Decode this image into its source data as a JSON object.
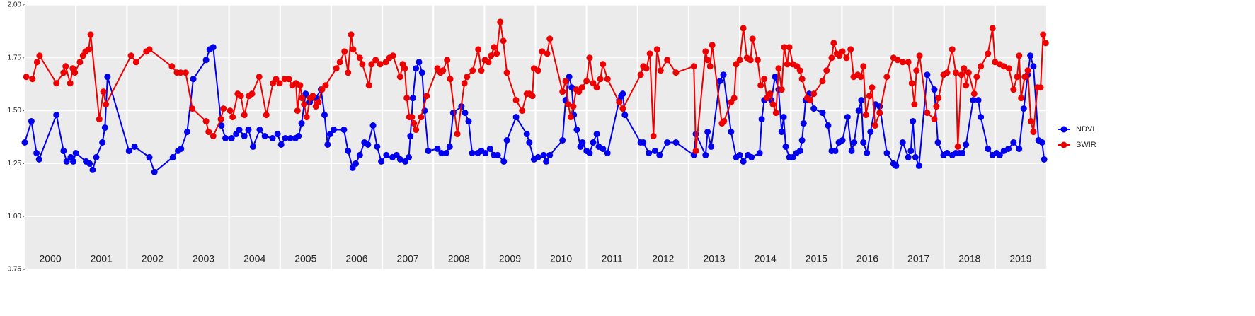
{
  "chart_data": {
    "type": "line",
    "xlim": [
      2000,
      2020
    ],
    "xticks": [
      {
        "value": 2000,
        "label": "2000"
      },
      {
        "value": 2001,
        "label": "2001"
      },
      {
        "value": 2002,
        "label": "2002"
      },
      {
        "value": 2003,
        "label": "2003"
      },
      {
        "value": 2004,
        "label": "2004"
      },
      {
        "value": 2005,
        "label": "2005"
      },
      {
        "value": 2006,
        "label": "2006"
      },
      {
        "value": 2007,
        "label": "2007"
      },
      {
        "value": 2008,
        "label": "2008"
      },
      {
        "value": 2009,
        "label": "2009"
      },
      {
        "value": 2010,
        "label": "2010"
      },
      {
        "value": 2011,
        "label": "2011"
      },
      {
        "value": 2012,
        "label": "2012"
      },
      {
        "value": 2013,
        "label": "2013"
      },
      {
        "value": 2014,
        "label": "2014"
      },
      {
        "value": 2015,
        "label": "2015"
      },
      {
        "value": 2016,
        "label": "2016"
      },
      {
        "value": 2017,
        "label": "2017"
      },
      {
        "value": 2018,
        "label": "2018"
      },
      {
        "value": 2019,
        "label": "2019"
      }
    ],
    "ylim": [
      0.75,
      2.0
    ],
    "yticks": [
      {
        "value": 0.75,
        "label": "0.75"
      },
      {
        "value": 1.0,
        "label": "1.00"
      },
      {
        "value": 1.25,
        "label": "1.25"
      },
      {
        "value": 1.5,
        "label": "1.50"
      },
      {
        "value": 1.75,
        "label": "1.75"
      },
      {
        "value": 2.0,
        "label": "2.00"
      }
    ],
    "grid": true,
    "legend": "right",
    "series": [
      {
        "name": "NDVI",
        "color": "#0000ee",
        "x": [
          2000.0,
          2000.13,
          2000.23,
          2000.28,
          2000.62,
          2000.76,
          2000.82,
          2000.9,
          2000.95,
          2001.0,
          2001.2,
          2001.27,
          2001.33,
          2001.4,
          2001.52,
          2001.57,
          2001.62,
          2002.04,
          2002.15,
          2002.44,
          2002.54,
          2002.9,
          2003.0,
          2003.06,
          2003.18,
          2003.3,
          2003.55,
          2003.62,
          2003.69,
          2003.85,
          2003.93,
          2004.05,
          2004.14,
          2004.2,
          2004.3,
          2004.38,
          2004.47,
          2004.6,
          2004.7,
          2004.85,
          2004.95,
          2005.02,
          2005.1,
          2005.2,
          2005.3,
          2005.36,
          2005.42,
          2005.5,
          2005.58,
          2005.7,
          2005.8,
          2005.87,
          2005.93,
          2005.98,
          2006.05,
          2006.25,
          2006.33,
          2006.42,
          2006.48,
          2006.56,
          2006.65,
          2006.72,
          2006.82,
          2006.9,
          2006.98,
          2007.08,
          2007.2,
          2007.28,
          2007.35,
          2007.45,
          2007.52,
          2007.55,
          2007.6,
          2007.66,
          2007.72,
          2007.78,
          2007.83,
          2007.9,
          2008.08,
          2008.16,
          2008.25,
          2008.32,
          2008.39,
          2008.55,
          2008.62,
          2008.69,
          2008.76,
          2008.87,
          2008.94,
          2009.02,
          2009.11,
          2009.19,
          2009.26,
          2009.38,
          2009.44,
          2009.62,
          2009.83,
          2009.88,
          2009.97,
          2010.05,
          2010.16,
          2010.21,
          2010.28,
          2010.53,
          2010.59,
          2010.66,
          2010.71,
          2010.75,
          2010.81,
          2010.88,
          2010.92,
          2011.0,
          2011.06,
          2011.13,
          2011.2,
          2011.24,
          2011.32,
          2011.41,
          2011.64,
          2011.68,
          2011.71,
          2011.75,
          2012.06,
          2012.11,
          2012.22,
          2012.34,
          2012.43,
          2012.58,
          2012.75,
          2013.1,
          2013.14,
          2013.33,
          2013.37,
          2013.44,
          2013.61,
          2013.68,
          2013.83,
          2013.93,
          2014.0,
          2014.07,
          2014.16,
          2014.23,
          2014.39,
          2014.43,
          2014.48,
          2014.62,
          2014.69,
          2014.76,
          2014.82,
          2014.86,
          2014.9,
          2014.97,
          2015.04,
          2015.11,
          2015.18,
          2015.22,
          2015.25,
          2015.29,
          2015.36,
          2015.45,
          2015.62,
          2015.73,
          2015.8,
          2015.87,
          2015.94,
          2016.01,
          2016.11,
          2016.19,
          2016.24,
          2016.33,
          2016.38,
          2016.42,
          2016.49,
          2016.56,
          2016.66,
          2016.74,
          2016.88,
          2017.01,
          2017.06,
          2017.19,
          2017.3,
          2017.35,
          2017.39,
          2017.44,
          2017.51,
          2017.67,
          2017.81,
          2017.88,
          2017.99,
          2018.06,
          2018.16,
          2018.23,
          2018.3,
          2018.36,
          2018.43,
          2018.57,
          2018.67,
          2018.72,
          2018.86,
          2018.95,
          2019.03,
          2019.09,
          2019.17,
          2019.26,
          2019.36,
          2019.47,
          2019.56,
          2019.64,
          2019.69,
          2019.75,
          2019.85,
          2019.92,
          2019.96
        ],
        "values": [
          1.35,
          1.45,
          1.3,
          1.27,
          1.48,
          1.31,
          1.26,
          1.28,
          1.26,
          1.3,
          1.26,
          1.25,
          1.22,
          1.28,
          1.35,
          1.42,
          1.66,
          1.31,
          1.33,
          1.28,
          1.21,
          1.28,
          1.31,
          1.32,
          1.4,
          1.65,
          1.74,
          1.79,
          1.8,
          1.43,
          1.37,
          1.37,
          1.39,
          1.41,
          1.38,
          1.41,
          1.33,
          1.41,
          1.38,
          1.37,
          1.39,
          1.34,
          1.37,
          1.37,
          1.37,
          1.38,
          1.44,
          1.58,
          1.54,
          1.56,
          1.6,
          1.48,
          1.34,
          1.39,
          1.41,
          1.41,
          1.31,
          1.23,
          1.25,
          1.29,
          1.35,
          1.34,
          1.43,
          1.33,
          1.26,
          1.29,
          1.28,
          1.29,
          1.27,
          1.26,
          1.28,
          1.38,
          1.56,
          1.7,
          1.73,
          1.68,
          1.5,
          1.31,
          1.32,
          1.3,
          1.3,
          1.33,
          1.49,
          1.52,
          1.49,
          1.45,
          1.3,
          1.3,
          1.31,
          1.3,
          1.32,
          1.29,
          1.29,
          1.26,
          1.36,
          1.47,
          1.39,
          1.35,
          1.27,
          1.28,
          1.29,
          1.26,
          1.29,
          1.36,
          1.55,
          1.66,
          1.61,
          1.48,
          1.41,
          1.33,
          1.35,
          1.31,
          1.3,
          1.35,
          1.39,
          1.33,
          1.32,
          1.3,
          1.55,
          1.57,
          1.58,
          1.48,
          1.35,
          1.35,
          1.3,
          1.31,
          1.29,
          1.35,
          1.35,
          1.29,
          1.39,
          1.29,
          1.4,
          1.33,
          1.64,
          1.67,
          1.4,
          1.28,
          1.29,
          1.26,
          1.29,
          1.28,
          1.3,
          1.46,
          1.55,
          1.55,
          1.66,
          1.6,
          1.4,
          1.47,
          1.33,
          1.28,
          1.28,
          1.3,
          1.31,
          1.36,
          1.44,
          1.55,
          1.58,
          1.51,
          1.49,
          1.43,
          1.31,
          1.31,
          1.35,
          1.36,
          1.47,
          1.31,
          1.35,
          1.5,
          1.55,
          1.35,
          1.3,
          1.4,
          1.53,
          1.52,
          1.3,
          1.25,
          1.24,
          1.35,
          1.28,
          1.31,
          1.45,
          1.28,
          1.24,
          1.67,
          1.6,
          1.35,
          1.29,
          1.3,
          1.29,
          1.3,
          1.3,
          1.3,
          1.34,
          1.55,
          1.55,
          1.47,
          1.32,
          1.29,
          1.3,
          1.29,
          1.31,
          1.32,
          1.35,
          1.32,
          1.51,
          1.67,
          1.76,
          1.71,
          1.36,
          1.35,
          1.27
        ]
      },
      {
        "name": "SWIR",
        "color": "#ee0000",
        "x": [
          2000.03,
          2000.15,
          2000.24,
          2000.29,
          2000.62,
          2000.76,
          2000.8,
          2000.89,
          2000.94,
          2000.98,
          2001.08,
          2001.14,
          2001.19,
          2001.25,
          2001.29,
          2001.46,
          2001.54,
          2001.59,
          2002.08,
          2002.18,
          2002.38,
          2002.44,
          2002.88,
          2002.98,
          2003.05,
          2003.15,
          2003.28,
          2003.55,
          2003.6,
          2003.69,
          2003.84,
          2003.89,
          2004.02,
          2004.07,
          2004.17,
          2004.23,
          2004.3,
          2004.39,
          2004.45,
          2004.59,
          2004.73,
          2004.86,
          2004.92,
          2004.99,
          2005.09,
          2005.17,
          2005.24,
          2005.31,
          2005.34,
          2005.39,
          2005.43,
          2005.47,
          2005.52,
          2005.59,
          2005.64,
          2005.7,
          2005.75,
          2005.82,
          2005.89,
          2006.1,
          2006.17,
          2006.26,
          2006.33,
          2006.39,
          2006.43,
          2006.56,
          2006.61,
          2006.74,
          2006.79,
          2006.87,
          2006.96,
          2007.07,
          2007.14,
          2007.21,
          2007.35,
          2007.4,
          2007.44,
          2007.48,
          2007.53,
          2007.58,
          2007.62,
          2007.66,
          2007.76,
          2007.87,
          2008.08,
          2008.14,
          2008.19,
          2008.27,
          2008.33,
          2008.47,
          2008.61,
          2008.66,
          2008.77,
          2008.88,
          2008.94,
          2009.01,
          2009.08,
          2009.13,
          2009.19,
          2009.24,
          2009.31,
          2009.37,
          2009.44,
          2009.62,
          2009.74,
          2009.83,
          2009.88,
          2009.94,
          2009.97,
          2010.05,
          2010.13,
          2010.23,
          2010.28,
          2010.53,
          2010.59,
          2010.64,
          2010.69,
          2010.74,
          2010.8,
          2010.85,
          2010.91,
          2011.0,
          2011.06,
          2011.13,
          2011.2,
          2011.27,
          2011.32,
          2011.41,
          2011.64,
          2011.71,
          2012.06,
          2012.11,
          2012.17,
          2012.24,
          2012.31,
          2012.38,
          2012.45,
          2012.58,
          2012.75,
          2013.1,
          2013.14,
          2013.33,
          2013.37,
          2013.42,
          2013.46,
          2013.65,
          2013.69,
          2013.83,
          2013.89,
          2013.93,
          2014.0,
          2014.07,
          2014.14,
          2014.21,
          2014.25,
          2014.35,
          2014.41,
          2014.48,
          2014.53,
          2014.59,
          2014.65,
          2014.71,
          2014.76,
          2014.82,
          2014.87,
          2014.93,
          2014.97,
          2015.04,
          2015.12,
          2015.18,
          2015.22,
          2015.32,
          2015.38,
          2015.45,
          2015.62,
          2015.7,
          2015.8,
          2015.84,
          2015.9,
          2015.95,
          2016.01,
          2016.09,
          2016.17,
          2016.23,
          2016.31,
          2016.37,
          2016.42,
          2016.47,
          2016.54,
          2016.59,
          2016.65,
          2016.74,
          2016.88,
          2017.01,
          2017.09,
          2017.19,
          2017.3,
          2017.37,
          2017.42,
          2017.46,
          2017.52,
          2017.67,
          2017.81,
          2017.85,
          2017.89,
          2017.99,
          2018.06,
          2018.16,
          2018.23,
          2018.27,
          2018.34,
          2018.39,
          2018.43,
          2018.48,
          2018.59,
          2018.64,
          2018.72,
          2018.86,
          2018.95,
          2019.0,
          2019.09,
          2019.17,
          2019.27,
          2019.36,
          2019.43,
          2019.47,
          2019.51,
          2019.58,
          2019.64,
          2019.7,
          2019.75,
          2019.83,
          2019.89,
          2019.94,
          2019.99
        ],
        "values": [
          1.66,
          1.65,
          1.73,
          1.76,
          1.63,
          1.68,
          1.71,
          1.63,
          1.7,
          1.68,
          1.73,
          1.76,
          1.78,
          1.79,
          1.86,
          1.46,
          1.59,
          1.53,
          1.76,
          1.73,
          1.78,
          1.79,
          1.71,
          1.68,
          1.68,
          1.68,
          1.51,
          1.45,
          1.4,
          1.38,
          1.46,
          1.51,
          1.5,
          1.47,
          1.58,
          1.57,
          1.48,
          1.57,
          1.58,
          1.66,
          1.48,
          1.63,
          1.65,
          1.63,
          1.65,
          1.65,
          1.62,
          1.63,
          1.5,
          1.62,
          1.56,
          1.53,
          1.47,
          1.56,
          1.57,
          1.52,
          1.54,
          1.6,
          1.62,
          1.7,
          1.73,
          1.78,
          1.68,
          1.86,
          1.79,
          1.75,
          1.72,
          1.62,
          1.72,
          1.74,
          1.72,
          1.73,
          1.75,
          1.76,
          1.66,
          1.72,
          1.7,
          1.56,
          1.47,
          1.47,
          1.44,
          1.41,
          1.47,
          1.57,
          1.7,
          1.68,
          1.69,
          1.74,
          1.65,
          1.39,
          1.63,
          1.66,
          1.69,
          1.79,
          1.69,
          1.74,
          1.73,
          1.76,
          1.8,
          1.77,
          1.92,
          1.83,
          1.68,
          1.55,
          1.5,
          1.58,
          1.58,
          1.57,
          1.7,
          1.69,
          1.78,
          1.77,
          1.84,
          1.59,
          1.64,
          1.53,
          1.47,
          1.52,
          1.6,
          1.59,
          1.61,
          1.64,
          1.75,
          1.63,
          1.61,
          1.65,
          1.72,
          1.65,
          1.54,
          1.51,
          1.67,
          1.71,
          1.7,
          1.77,
          1.38,
          1.79,
          1.69,
          1.74,
          1.68,
          1.71,
          1.31,
          1.78,
          1.74,
          1.71,
          1.81,
          1.44,
          1.45,
          1.54,
          1.56,
          1.72,
          1.74,
          1.89,
          1.75,
          1.74,
          1.84,
          1.74,
          1.62,
          1.65,
          1.56,
          1.58,
          1.53,
          1.49,
          1.7,
          1.6,
          1.8,
          1.72,
          1.8,
          1.72,
          1.71,
          1.69,
          1.65,
          1.56,
          1.55,
          1.58,
          1.64,
          1.69,
          1.75,
          1.82,
          1.77,
          1.76,
          1.78,
          1.75,
          1.79,
          1.66,
          1.67,
          1.66,
          1.71,
          1.48,
          1.57,
          1.61,
          1.43,
          1.49,
          1.66,
          1.75,
          1.74,
          1.73,
          1.73,
          1.63,
          1.53,
          1.69,
          1.76,
          1.49,
          1.46,
          1.52,
          1.56,
          1.67,
          1.68,
          1.79,
          1.68,
          1.33,
          1.67,
          1.7,
          1.62,
          1.68,
          1.58,
          1.66,
          1.71,
          1.77,
          1.89,
          1.73,
          1.72,
          1.71,
          1.7,
          1.6,
          1.66,
          1.76,
          1.56,
          1.66,
          1.69,
          1.45,
          1.4,
          1.61,
          1.61,
          1.86,
          1.82
        ]
      }
    ]
  }
}
